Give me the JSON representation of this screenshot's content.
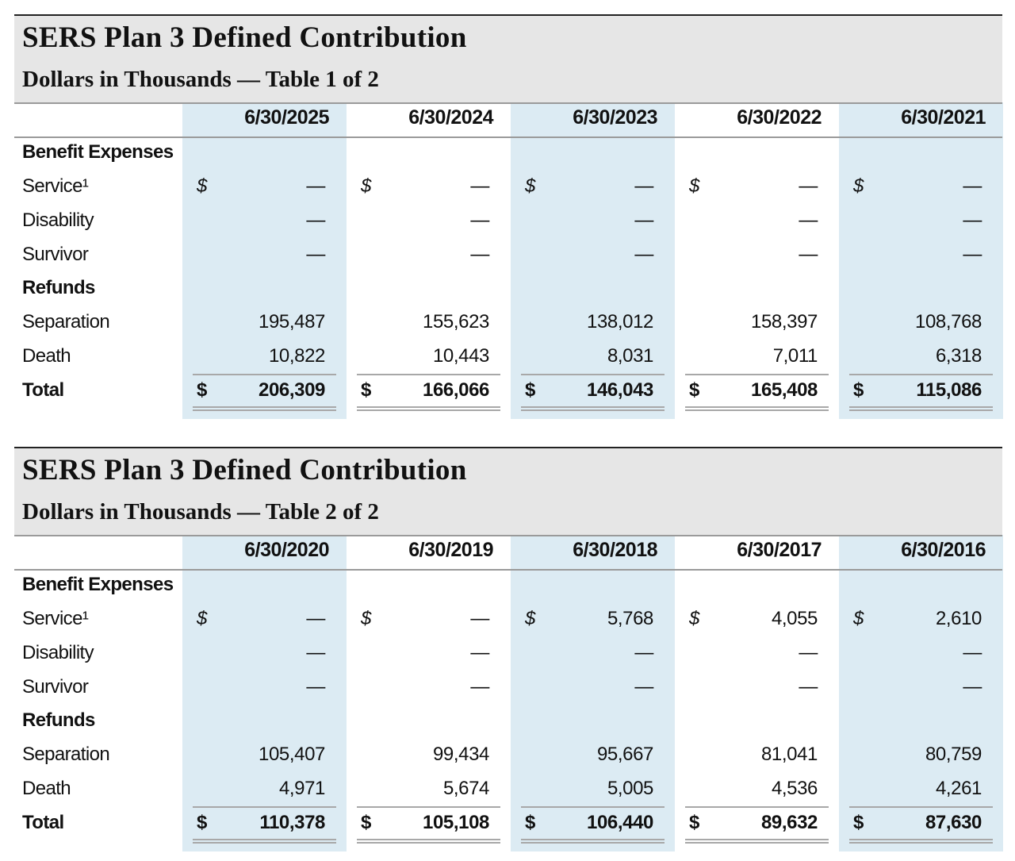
{
  "tables": [
    {
      "title": "SERS Plan 3 Defined Contribution",
      "subtitle": "Dollars in Thousands — Table 1 of 2",
      "dates": [
        "6/30/2025",
        "6/30/2024",
        "6/30/2023",
        "6/30/2022",
        "6/30/2021"
      ],
      "labels": {
        "benefit_expenses": "Benefit Expenses",
        "service": "Service¹",
        "disability": "Disability",
        "survivor": "Survivor",
        "refunds": "Refunds",
        "separation": "Separation",
        "death": "Death",
        "total": "Total"
      },
      "currency": "$",
      "service": [
        "—",
        "—",
        "—",
        "—",
        "—"
      ],
      "disability": [
        "—",
        "—",
        "—",
        "—",
        "—"
      ],
      "survivor": [
        "—",
        "—",
        "—",
        "—",
        "—"
      ],
      "separation": [
        "195,487",
        "155,623",
        "138,012",
        "158,397",
        "108,768"
      ],
      "death": [
        "10,822",
        "10,443",
        "8,031",
        "7,011",
        "6,318"
      ],
      "total": [
        "206,309",
        "166,066",
        "146,043",
        "165,408",
        "115,086"
      ]
    },
    {
      "title": "SERS Plan 3 Defined Contribution",
      "subtitle": "Dollars in Thousands — Table 2 of 2",
      "dates": [
        "6/30/2020",
        "6/30/2019",
        "6/30/2018",
        "6/30/2017",
        "6/30/2016"
      ],
      "labels": {
        "benefit_expenses": "Benefit Expenses",
        "service": "Service¹",
        "disability": "Disability",
        "survivor": "Survivor",
        "refunds": "Refunds",
        "separation": "Separation",
        "death": "Death",
        "total": "Total"
      },
      "currency": "$",
      "service": [
        "—",
        "—",
        "5,768",
        "4,055",
        "2,610"
      ],
      "disability": [
        "—",
        "—",
        "—",
        "—",
        "—"
      ],
      "survivor": [
        "—",
        "—",
        "—",
        "—",
        "—"
      ],
      "separation": [
        "105,407",
        "99,434",
        "95,667",
        "81,041",
        "80,759"
      ],
      "death": [
        "4,971",
        "5,674",
        "5,005",
        "4,536",
        "4,261"
      ],
      "total": [
        "110,378",
        "105,108",
        "106,440",
        "89,632",
        "87,630"
      ]
    }
  ]
}
